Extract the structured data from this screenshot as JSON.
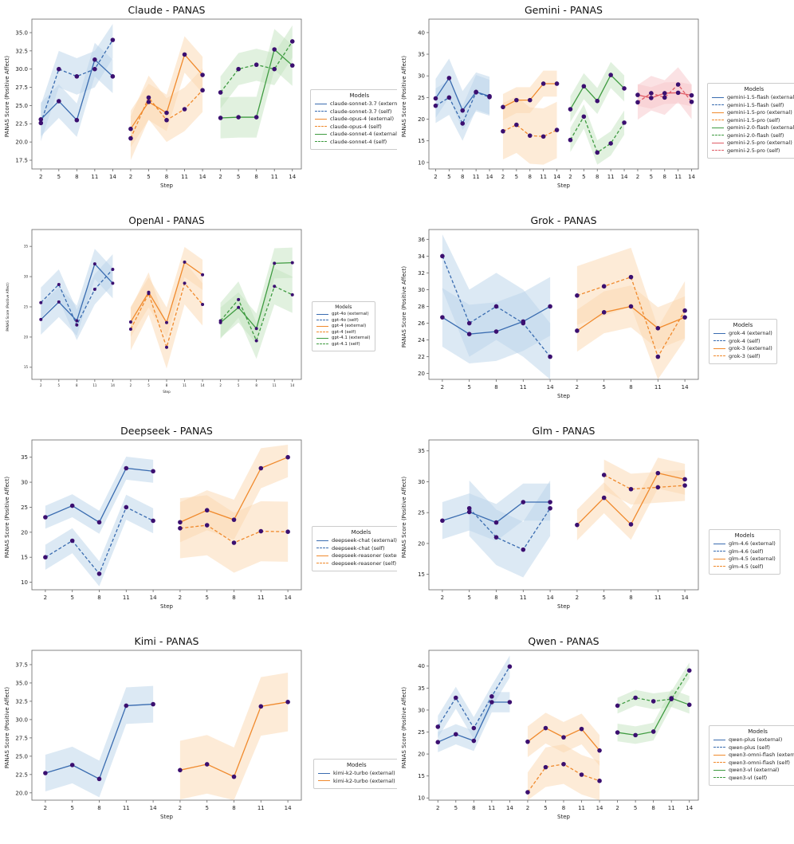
{
  "page": {
    "background": "#ffffff"
  },
  "colors": {
    "line": {
      "blue": "#3a6cb0",
      "orange": "#f08a2d",
      "green": "#3f9b41",
      "red": "#e05c66"
    },
    "band": {
      "blue": "#b9d4ea",
      "orange": "#fcd8b0",
      "green": "#c3e3c0",
      "red": "#f7c5ca"
    },
    "marker": "#3b0f70",
    "spine": "#666666",
    "axis_text": "#222222"
  },
  "xticklabels": [
    "2",
    "5",
    "8",
    "11",
    "14"
  ],
  "chart_data": [
    {
      "type": "line",
      "id": "claude",
      "title": "Claude - PANAS",
      "ylabel": "PANAS Score (Positive Affect)",
      "xlabel": "Step",
      "ylim": [
        16.3,
        36.2
      ],
      "yticks": [
        17.5,
        20,
        22.5,
        25,
        27.5,
        30,
        32.5,
        35
      ],
      "ytick_labels": [
        "17.5",
        "20.0",
        "22.5",
        "25.0",
        "27.5",
        "30.0",
        "32.5",
        "35.0"
      ],
      "x_steps": [
        2,
        5,
        8,
        11,
        14
      ],
      "legend_title": "Models",
      "legend_position": "right",
      "grid": false,
      "small": false,
      "series": [
        {
          "label": "claude-sonnet-3.7 (external)",
          "color": "blue",
          "dash": false,
          "group": 0,
          "values": [
            23.1,
            25.6,
            23.0,
            31.3,
            29.0
          ],
          "band": 2.3
        },
        {
          "label": "claude-sonnet-3.7 (self)",
          "color": "blue",
          "dash": true,
          "group": 0,
          "values": [
            22.6,
            30.0,
            29.0,
            30.0,
            34.0
          ],
          "band": 2.5
        },
        {
          "label": "claude-opus-4 (external)",
          "color": "orange",
          "dash": false,
          "group": 1,
          "values": [
            21.8,
            25.5,
            24.0,
            32.0,
            29.2
          ],
          "band": 2.5
        },
        {
          "label": "claude-opus-4 (self)",
          "color": "orange",
          "dash": true,
          "group": 1,
          "values": [
            20.5,
            26.1,
            23.0,
            24.5,
            27.1
          ],
          "band": 3.0
        },
        {
          "label": "claude-sonnet-4 (external)",
          "color": "green",
          "dash": false,
          "group": 2,
          "values": [
            23.3,
            23.4,
            23.4,
            32.7,
            30.5
          ],
          "band": 2.8
        },
        {
          "label": "claude-sonnet-4 (self)",
          "color": "green",
          "dash": true,
          "group": 2,
          "values": [
            26.8,
            30.0,
            30.6,
            30.0,
            33.8
          ],
          "band": 2.2
        }
      ]
    },
    {
      "type": "line",
      "id": "gemini",
      "title": "Gemini - PANAS",
      "ylabel": "PANAS Score (Positive Affect)",
      "xlabel": "Step",
      "ylim": [
        8.5,
        42.0
      ],
      "yticks": [
        10,
        15,
        20,
        25,
        30,
        35,
        40
      ],
      "ytick_labels": [
        "10",
        "15",
        "20",
        "25",
        "30",
        "35",
        "40"
      ],
      "x_steps": [
        2,
        5,
        8,
        11,
        14
      ],
      "legend_title": "Models",
      "legend_position": "right",
      "grid": false,
      "small": false,
      "series": [
        {
          "label": "gemini-1.5-flash (external)",
          "color": "blue",
          "dash": false,
          "group": 0,
          "values": [
            24.8,
            29.5,
            22.0,
            26.3,
            25.3
          ],
          "band": 4.5
        },
        {
          "label": "gemini-1.5-flash (self)",
          "color": "blue",
          "dash": true,
          "group": 0,
          "values": [
            23.1,
            25.0,
            19.0,
            26.2,
            25.1
          ],
          "band": 4.0
        },
        {
          "label": "gemini-1.5-pro (external)",
          "color": "orange",
          "dash": false,
          "group": 1,
          "values": [
            22.8,
            24.4,
            24.4,
            28.2,
            28.2
          ],
          "band": 3.0
        },
        {
          "label": "gemini-1.5-pro (self)",
          "color": "orange",
          "dash": true,
          "group": 1,
          "values": [
            17.2,
            18.7,
            16.2,
            16.0,
            17.5
          ],
          "band": 6.5
        },
        {
          "label": "gemini-2.0-flash (external)",
          "color": "green",
          "dash": false,
          "group": 2,
          "values": [
            22.3,
            27.6,
            24.2,
            30.2,
            27.1
          ],
          "band": 3.0
        },
        {
          "label": "gemini-2.0-flash (self)",
          "color": "green",
          "dash": true,
          "group": 2,
          "values": [
            15.2,
            20.6,
            12.3,
            14.4,
            19.2
          ],
          "band": 2.8
        },
        {
          "label": "gemini-2.5-pro (external)",
          "color": "red",
          "dash": false,
          "group": 3,
          "values": [
            25.6,
            24.9,
            26.0,
            26.1,
            25.5
          ],
          "band": 2.5
        },
        {
          "label": "gemini-2.5-pro (self)",
          "color": "red",
          "dash": true,
          "group": 3,
          "values": [
            23.9,
            26.0,
            25.0,
            28.0,
            24.0
          ],
          "band": 4.0
        }
      ]
    },
    {
      "type": "line",
      "id": "openai",
      "title": "OpenAI - PANAS",
      "ylabel": "PANAS Score (Positive Affect)",
      "xlabel": "Step",
      "ylim": [
        13.0,
        37.0
      ],
      "yticks": [
        15,
        20,
        25,
        30,
        35
      ],
      "ytick_labels": [
        "15",
        "20",
        "25",
        "30",
        "35"
      ],
      "x_steps": [
        2,
        5,
        8,
        11,
        14
      ],
      "legend_title": "Models",
      "legend_position": "right",
      "grid": false,
      "small": true,
      "series": [
        {
          "label": "gpt-4o (external)",
          "color": "blue",
          "dash": false,
          "group": 0,
          "values": [
            22.9,
            25.8,
            22.7,
            32.1,
            28.9
          ],
          "band": 2.5
        },
        {
          "label": "gpt-4o (self)",
          "color": "blue",
          "dash": true,
          "group": 0,
          "values": [
            25.7,
            28.7,
            22.0,
            27.9,
            31.2
          ],
          "band": 2.5
        },
        {
          "label": "gpt-4 (external)",
          "color": "orange",
          "dash": false,
          "group": 1,
          "values": [
            22.5,
            27.4,
            22.4,
            32.4,
            30.3
          ],
          "band": 2.5
        },
        {
          "label": "gpt-4 (self)",
          "color": "orange",
          "dash": true,
          "group": 1,
          "values": [
            21.3,
            27.2,
            18.3,
            28.9,
            25.4
          ],
          "band": 3.5
        },
        {
          "label": "gpt-4.1 (external)",
          "color": "green",
          "dash": false,
          "group": 2,
          "values": [
            22.4,
            24.9,
            21.4,
            32.2,
            32.3
          ],
          "band": 2.5
        },
        {
          "label": "gpt-4.1 (self)",
          "color": "green",
          "dash": true,
          "group": 2,
          "values": [
            22.7,
            26.2,
            19.4,
            28.4,
            27.0
          ],
          "band": 3.0
        }
      ]
    },
    {
      "type": "line",
      "id": "grok",
      "title": "Grok - PANAS",
      "ylabel": "PANAS Score (Positive Affect)",
      "xlabel": "Step",
      "ylim": [
        19.3,
        36.6
      ],
      "yticks": [
        20,
        22,
        24,
        26,
        28,
        30,
        32,
        34,
        36
      ],
      "ytick_labels": [
        "20",
        "22",
        "24",
        "26",
        "28",
        "30",
        "32",
        "34",
        "36"
      ],
      "x_steps": [
        2,
        5,
        8,
        11,
        14
      ],
      "legend_title": "Models",
      "legend_position": "right",
      "grid": false,
      "small": false,
      "series": [
        {
          "label": "grok-4 (external)",
          "color": "blue",
          "dash": false,
          "group": 0,
          "values": [
            26.7,
            24.7,
            25.0,
            26.2,
            28.0
          ],
          "band": 3.5
        },
        {
          "label": "grok-4 (self)",
          "color": "blue",
          "dash": true,
          "group": 0,
          "values": [
            34.0,
            26.0,
            28.0,
            26.0,
            22.0
          ],
          "band": 4.0
        },
        {
          "label": "grok-3 (external)",
          "color": "orange",
          "dash": false,
          "group": 1,
          "values": [
            25.1,
            27.3,
            28.0,
            25.4,
            26.7
          ],
          "band": 2.5
        },
        {
          "label": "grok-3 (self)",
          "color": "orange",
          "dash": true,
          "group": 1,
          "values": [
            29.3,
            30.4,
            31.5,
            22.0,
            27.5
          ],
          "band": 3.5
        }
      ]
    },
    {
      "type": "line",
      "id": "deepseek",
      "title": "Deepseek - PANAS",
      "ylabel": "PANAS Score (Positive Affect)",
      "xlabel": "Step",
      "ylim": [
        8.5,
        37.5
      ],
      "yticks": [
        10,
        15,
        20,
        25,
        30,
        35
      ],
      "ytick_labels": [
        "10",
        "15",
        "20",
        "25",
        "30",
        "35"
      ],
      "x_steps": [
        2,
        5,
        8,
        11,
        14
      ],
      "legend_title": "Models",
      "legend_position": "right",
      "grid": false,
      "small": false,
      "series": [
        {
          "label": "deepseek-chat (external)",
          "color": "blue",
          "dash": false,
          "group": 0,
          "values": [
            23.0,
            25.3,
            22.0,
            32.8,
            32.2
          ],
          "band": 2.3
        },
        {
          "label": "deepseek-chat (self)",
          "color": "blue",
          "dash": true,
          "group": 0,
          "values": [
            15.0,
            18.3,
            11.7,
            25.0,
            22.3
          ],
          "band": 2.5
        },
        {
          "label": "deepseek-reasoner (external)",
          "color": "orange",
          "dash": false,
          "group": 1,
          "values": [
            22.0,
            24.4,
            22.5,
            32.8,
            35.0
          ],
          "band": 4.0
        },
        {
          "label": "deepseek-reasoner (self)",
          "color": "orange",
          "dash": true,
          "group": 1,
          "values": [
            20.8,
            21.4,
            17.9,
            20.2,
            20.1
          ],
          "band": 6.0
        }
      ]
    },
    {
      "type": "line",
      "id": "glm",
      "title": "Glm - PANAS",
      "ylabel": "PANAS Score (Positive Affect)",
      "xlabel": "Step",
      "ylim": [
        12.5,
        36.0
      ],
      "yticks": [
        15,
        20,
        25,
        30,
        35
      ],
      "ytick_labels": [
        "15",
        "20",
        "25",
        "30",
        "35"
      ],
      "x_steps": [
        2,
        5,
        8,
        11,
        14
      ],
      "legend_title": "Models",
      "legend_position": "right",
      "grid": false,
      "small": false,
      "series": [
        {
          "label": "glm-4.6 (external)",
          "color": "blue",
          "dash": false,
          "group": 0,
          "values": [
            23.7,
            25.1,
            23.4,
            26.7,
            26.7
          ],
          "band": 3.0
        },
        {
          "label": "glm-4.6 (self)",
          "color": "blue",
          "dash": true,
          "group": 0,
          "values": [
            null,
            25.7,
            21.0,
            19.0,
            25.7
          ],
          "band": 4.5
        },
        {
          "label": "glm-4.5 (external)",
          "color": "orange",
          "dash": false,
          "group": 1,
          "values": [
            23.0,
            27.4,
            23.1,
            31.4,
            30.4
          ],
          "band": 2.5
        },
        {
          "label": "glm-4.5 (self)",
          "color": "orange",
          "dash": true,
          "group": 1,
          "values": [
            null,
            31.1,
            28.8,
            29.1,
            29.4
          ],
          "band": 2.5
        }
      ]
    },
    {
      "type": "line",
      "id": "kimi",
      "title": "Kimi - PANAS",
      "ylabel": "PANAS Score (Positive Affect)",
      "xlabel": "Step",
      "ylim": [
        19.0,
        38.8
      ],
      "yticks": [
        20,
        22.5,
        25,
        27.5,
        30,
        32.5,
        35,
        37.5
      ],
      "ytick_labels": [
        "20.0",
        "22.5",
        "25.0",
        "27.5",
        "30.0",
        "32.5",
        "35.0",
        "37.5"
      ],
      "x_steps": [
        2,
        5,
        8,
        11,
        14
      ],
      "legend_title": "Models",
      "legend_position": "right",
      "grid": false,
      "small": false,
      "series": [
        {
          "label": "kimi-k2-turbo (external)",
          "color": "blue",
          "dash": false,
          "group": 0,
          "values": [
            22.7,
            23.8,
            21.9,
            31.9,
            32.1
          ],
          "band": 2.5
        },
        {
          "label": "kimi-k2-turbo (external)",
          "color": "orange",
          "dash": false,
          "group": 1,
          "values": [
            23.1,
            23.9,
            22.2,
            31.8,
            32.4
          ],
          "band": 4.0
        }
      ]
    },
    {
      "type": "line",
      "id": "qwen",
      "title": "Qwen - PANAS",
      "ylabel": "PANAS Score (Positive Affect)",
      "xlabel": "Step",
      "ylim": [
        9.5,
        42.5
      ],
      "yticks": [
        10,
        15,
        20,
        25,
        30,
        35,
        40
      ],
      "ytick_labels": [
        "10",
        "15",
        "20",
        "25",
        "30",
        "35",
        "40"
      ],
      "x_steps": [
        2,
        5,
        8,
        11,
        14
      ],
      "legend_title": "Models",
      "legend_position": "right",
      "grid": false,
      "small": false,
      "series": [
        {
          "label": "qwen-plus (external)",
          "color": "blue",
          "dash": false,
          "group": 0,
          "values": [
            22.7,
            24.5,
            23.0,
            31.8,
            31.8
          ],
          "band": 2.3
        },
        {
          "label": "qwen-plus (self)",
          "color": "blue",
          "dash": true,
          "group": 0,
          "values": [
            26.2,
            32.8,
            25.9,
            33.1,
            39.9
          ],
          "band": 2.5
        },
        {
          "label": "qwen3-omni-flash (external)",
          "color": "orange",
          "dash": false,
          "group": 1,
          "values": [
            22.8,
            25.9,
            23.8,
            25.7,
            20.8
          ],
          "band": 3.5
        },
        {
          "label": "qwen3-omni-flash (self)",
          "color": "orange",
          "dash": true,
          "group": 1,
          "values": [
            11.3,
            17.0,
            17.7,
            15.3,
            13.9
          ],
          "band": 4.5
        },
        {
          "label": "qwen3-vl (external)",
          "color": "green",
          "dash": false,
          "group": 2,
          "values": [
            24.9,
            24.3,
            25.1,
            32.7,
            31.2
          ],
          "band": 2.0
        },
        {
          "label": "qwen3-vl (self)",
          "color": "green",
          "dash": true,
          "group": 2,
          "values": [
            31.0,
            32.8,
            32.0,
            32.5,
            39.0
          ],
          "band": 1.8
        }
      ]
    }
  ]
}
